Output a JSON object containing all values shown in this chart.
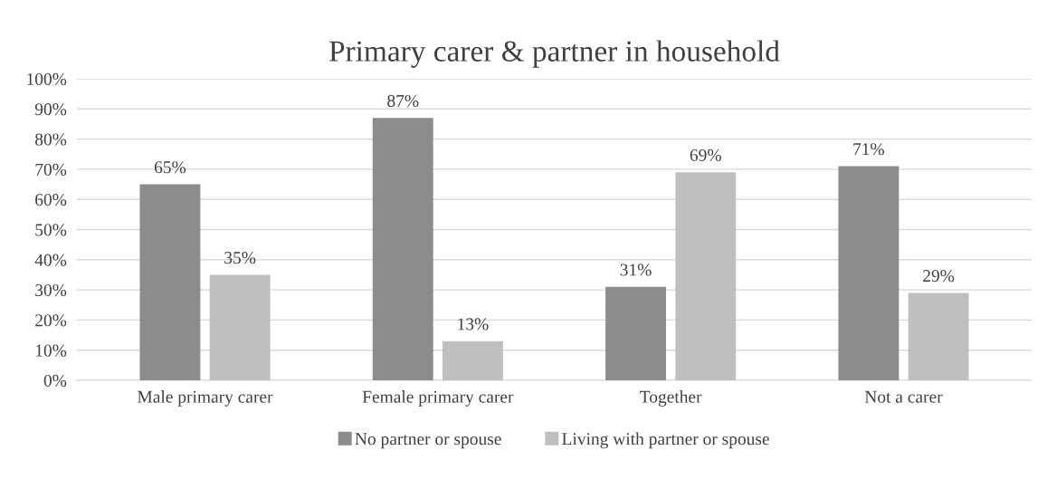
{
  "chart_data": {
    "type": "bar",
    "title": "Primary carer & partner in household",
    "categories": [
      "Male primary carer",
      "Female primary carer",
      "Together",
      "Not a carer"
    ],
    "series": [
      {
        "name": "No partner or spouse",
        "color": "#8c8c8c",
        "values": [
          65,
          87,
          31,
          71
        ],
        "value_labels": [
          "65%",
          "87%",
          "31%",
          "71%"
        ]
      },
      {
        "name": "Living with partner or spouse",
        "color": "#bfbfbf",
        "values": [
          35,
          13,
          69,
          29
        ],
        "value_labels": [
          "35%",
          "13%",
          "69%",
          "29%"
        ]
      }
    ],
    "ylim": [
      0,
      100
    ],
    "yticks": [
      {
        "value": 0,
        "label": "0%"
      },
      {
        "value": 10,
        "label": "10%"
      },
      {
        "value": 20,
        "label": "20%"
      },
      {
        "value": 30,
        "label": "30%"
      },
      {
        "value": 40,
        "label": "40%"
      },
      {
        "value": 50,
        "label": "50%"
      },
      {
        "value": 60,
        "label": "60%"
      },
      {
        "value": 70,
        "label": "70%"
      },
      {
        "value": 80,
        "label": "80%"
      },
      {
        "value": 90,
        "label": "90%"
      },
      {
        "value": 100,
        "label": "100%"
      }
    ],
    "grid": "y",
    "legend": "bottom"
  }
}
